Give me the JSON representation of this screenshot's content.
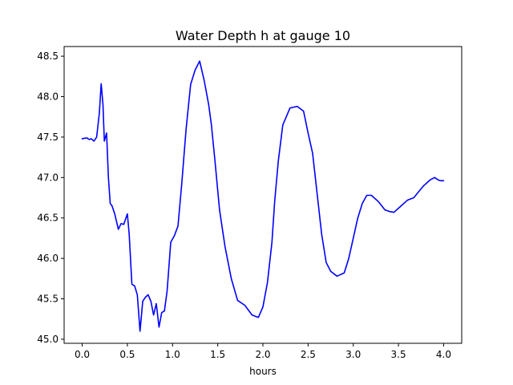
{
  "chart_data": {
    "type": "line",
    "title": "Water Depth h at gauge 10",
    "xlabel": "hours",
    "ylabel": "",
    "xlim": [
      -0.2,
      4.2
    ],
    "ylim": [
      44.95,
      48.62
    ],
    "xticks": [
      "0.0",
      "0.5",
      "1.0",
      "1.5",
      "2.0",
      "2.5",
      "3.0",
      "3.5",
      "4.0"
    ],
    "yticks": [
      "45.0",
      "45.5",
      "46.0",
      "46.5",
      "47.0",
      "47.5",
      "48.0",
      "48.5"
    ],
    "grid": false,
    "series": [
      {
        "color": "#0000ff",
        "x": [
          0.0,
          0.05,
          0.08,
          0.1,
          0.13,
          0.16,
          0.19,
          0.21,
          0.23,
          0.245,
          0.27,
          0.29,
          0.31,
          0.33,
          0.36,
          0.4,
          0.43,
          0.46,
          0.5,
          0.52,
          0.55,
          0.58,
          0.61,
          0.64,
          0.67,
          0.7,
          0.73,
          0.76,
          0.79,
          0.82,
          0.85,
          0.88,
          0.91,
          0.94,
          0.98,
          1.02,
          1.06,
          1.1,
          1.15,
          1.2,
          1.25,
          1.3,
          1.35,
          1.4,
          1.43,
          1.47,
          1.52,
          1.58,
          1.65,
          1.72,
          1.8,
          1.88,
          1.95,
          2.0,
          2.05,
          2.1,
          2.13,
          2.17,
          2.22,
          2.3,
          2.38,
          2.45,
          2.5,
          2.55,
          2.6,
          2.65,
          2.7,
          2.75,
          2.82,
          2.9,
          2.95,
          3.0,
          3.05,
          3.1,
          3.15,
          3.2,
          3.28,
          3.35,
          3.4,
          3.45,
          3.52,
          3.6,
          3.67,
          3.72,
          3.78,
          3.85,
          3.9,
          3.94,
          3.97,
          4.0
        ],
        "y": [
          47.48,
          47.49,
          47.47,
          47.48,
          47.45,
          47.5,
          47.8,
          48.16,
          47.9,
          47.45,
          47.55,
          47.0,
          46.68,
          46.65,
          46.55,
          46.36,
          46.43,
          46.42,
          46.55,
          46.3,
          45.68,
          45.66,
          45.55,
          45.1,
          45.47,
          45.52,
          45.55,
          45.47,
          45.3,
          45.44,
          45.15,
          45.33,
          45.35,
          45.6,
          46.2,
          46.28,
          46.4,
          46.9,
          47.6,
          48.15,
          48.33,
          48.44,
          48.2,
          47.9,
          47.65,
          47.2,
          46.6,
          46.15,
          45.75,
          45.48,
          45.42,
          45.3,
          45.27,
          45.4,
          45.7,
          46.2,
          46.7,
          47.2,
          47.65,
          47.86,
          47.88,
          47.82,
          47.55,
          47.3,
          46.8,
          46.3,
          45.95,
          45.84,
          45.78,
          45.82,
          46.0,
          46.25,
          46.5,
          46.68,
          46.78,
          46.78,
          46.7,
          46.6,
          46.58,
          46.57,
          46.64,
          46.72,
          46.75,
          46.82,
          46.9,
          46.97,
          47.0,
          46.97,
          46.96,
          46.96
        ]
      }
    ]
  }
}
